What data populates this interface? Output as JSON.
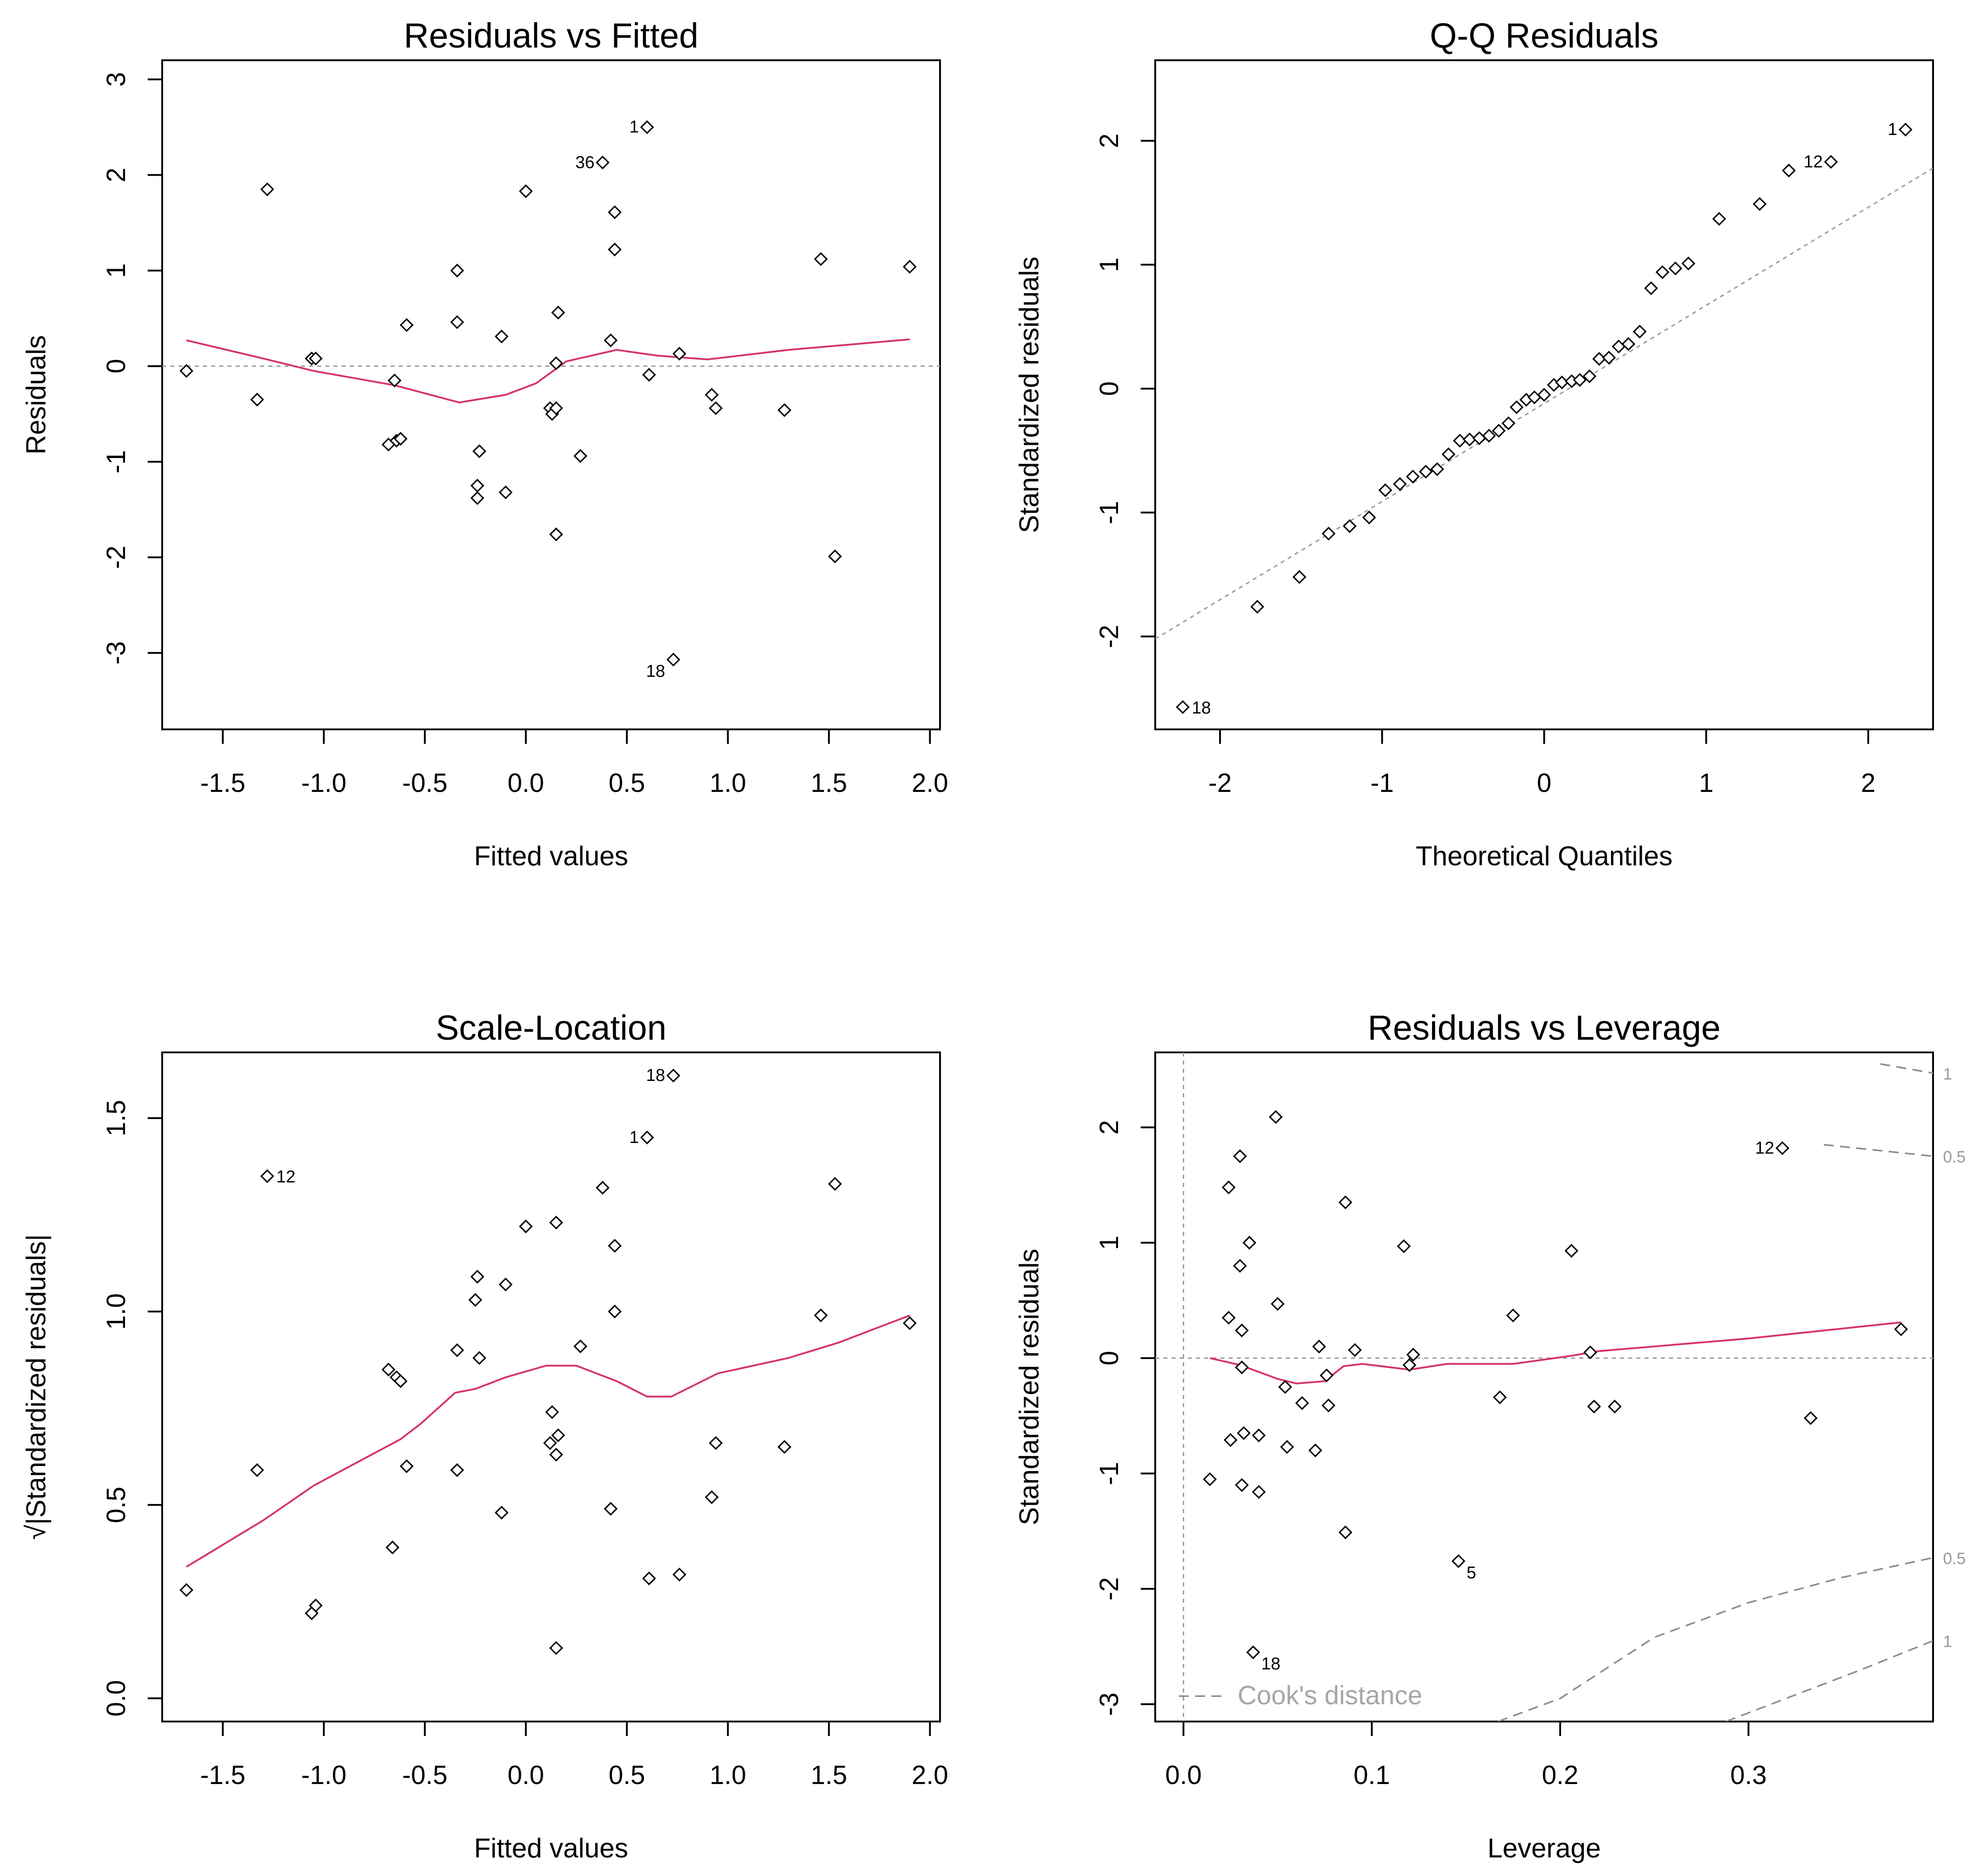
{
  "colors": {
    "smooth": "#d6336c",
    "reference": "#9a9a9a",
    "cooks": "#8c8c8c",
    "points": "#000000"
  },
  "chart_data": [
    {
      "type": "scatter",
      "title": "Residuals vs Fitted",
      "xlabel": "Fitted values",
      "ylabel": "Residuals",
      "xlim": [
        -1.8,
        2.05
      ],
      "ylim": [
        -3.8,
        3.2
      ],
      "xticks": [
        -1.5,
        -1.0,
        -0.5,
        0.0,
        0.5,
        1.0,
        1.5,
        2.0
      ],
      "xtick_labels": [
        "-1.5",
        "-1.0",
        "-0.5",
        "0.0",
        "0.5",
        "1.0",
        "1.5",
        "2.0"
      ],
      "yticks": [
        -3,
        -2,
        -1,
        0,
        1,
        2,
        3
      ],
      "ytick_labels": [
        "-3",
        "-2",
        "-1",
        "0",
        "1",
        "2",
        "3"
      ],
      "reference_line": {
        "y": 0
      },
      "points": [
        [
          -1.68,
          -0.05
        ],
        [
          -1.33,
          -0.35
        ],
        [
          -1.28,
          1.85
        ],
        [
          -1.06,
          0.08
        ],
        [
          -1.04,
          0.08
        ],
        [
          -0.68,
          -0.82
        ],
        [
          -0.65,
          -0.15
        ],
        [
          -0.64,
          -0.78
        ],
        [
          -0.62,
          -0.76
        ],
        [
          -0.59,
          0.43
        ],
        [
          -0.34,
          1.0
        ],
        [
          -0.34,
          0.46
        ],
        [
          -0.24,
          -1.25
        ],
        [
          -0.24,
          -1.38
        ],
        [
          -0.23,
          -0.89
        ],
        [
          -0.12,
          0.31
        ],
        [
          -0.1,
          -1.32
        ],
        [
          0.0,
          1.83
        ],
        [
          0.12,
          -0.44
        ],
        [
          0.13,
          -0.5
        ],
        [
          0.15,
          -0.44
        ],
        [
          0.15,
          0.03
        ],
        [
          0.16,
          0.56
        ],
        [
          0.15,
          -1.76
        ],
        [
          0.27,
          -0.94
        ],
        [
          0.38,
          2.13
        ],
        [
          0.42,
          0.27
        ],
        [
          0.44,
          1.61
        ],
        [
          0.44,
          1.22
        ],
        [
          0.6,
          2.5
        ],
        [
          0.61,
          -0.09
        ],
        [
          0.73,
          -3.07
        ],
        [
          0.76,
          0.13
        ],
        [
          0.92,
          -0.3
        ],
        [
          0.94,
          -0.44
        ],
        [
          1.28,
          -0.46
        ],
        [
          1.46,
          1.12
        ],
        [
          1.53,
          -1.99
        ],
        [
          1.9,
          1.04
        ]
      ],
      "point_labels": [
        {
          "text": "1",
          "x": 0.6,
          "y": 2.5
        },
        {
          "text": "36",
          "x": 0.38,
          "y": 2.13
        },
        {
          "text": "18",
          "x": 0.73,
          "y": -3.07
        }
      ],
      "smooth": [
        [
          -1.68,
          0.27
        ],
        [
          -1.3,
          0.08
        ],
        [
          -1.05,
          -0.05
        ],
        [
          -0.65,
          -0.2
        ],
        [
          -0.33,
          -0.38
        ],
        [
          -0.1,
          -0.3
        ],
        [
          0.05,
          -0.18
        ],
        [
          0.2,
          0.05
        ],
        [
          0.45,
          0.17
        ],
        [
          0.65,
          0.11
        ],
        [
          0.9,
          0.07
        ],
        [
          1.3,
          0.17
        ],
        [
          1.9,
          0.28
        ]
      ]
    },
    {
      "type": "scatter",
      "title": "Q-Q Residuals",
      "xlabel": "Theoretical Quantiles",
      "ylabel": "Standardized residuals",
      "xlim": [
        -2.4,
        2.4
      ],
      "ylim": [
        -2.75,
        2.65
      ],
      "xticks": [
        -2,
        -1,
        0,
        1,
        2
      ],
      "xtick_labels": [
        "-2",
        "-1",
        "0",
        "1",
        "2"
      ],
      "yticks": [
        -2,
        -1,
        0,
        1,
        2
      ],
      "ytick_labels": [
        "-2",
        "-1",
        "0",
        "1",
        "2"
      ],
      "reference_line": {
        "x1": -2.4,
        "y1": -2.02,
        "x2": 2.4,
        "y2": 1.78
      },
      "points": [
        [
          -2.23,
          -2.57
        ],
        [
          -1.77,
          -1.76
        ],
        [
          -1.51,
          -1.52
        ],
        [
          -1.33,
          -1.17
        ],
        [
          -1.2,
          -1.11
        ],
        [
          -1.08,
          -1.04
        ],
        [
          -0.98,
          -0.82
        ],
        [
          -0.89,
          -0.77
        ],
        [
          -0.81,
          -0.71
        ],
        [
          -0.73,
          -0.67
        ],
        [
          -0.66,
          -0.65
        ],
        [
          -0.59,
          -0.53
        ],
        [
          -0.52,
          -0.42
        ],
        [
          -0.46,
          -0.41
        ],
        [
          -0.4,
          -0.4
        ],
        [
          -0.34,
          -0.38
        ],
        [
          -0.28,
          -0.34
        ],
        [
          -0.22,
          -0.28
        ],
        [
          -0.17,
          -0.15
        ],
        [
          -0.11,
          -0.09
        ],
        [
          -0.06,
          -0.07
        ],
        [
          0.0,
          -0.05
        ],
        [
          0.06,
          0.03
        ],
        [
          0.11,
          0.05
        ],
        [
          0.17,
          0.06
        ],
        [
          0.22,
          0.07
        ],
        [
          0.28,
          0.1
        ],
        [
          0.34,
          0.24
        ],
        [
          0.4,
          0.25
        ],
        [
          0.46,
          0.34
        ],
        [
          0.52,
          0.36
        ],
        [
          0.59,
          0.46
        ],
        [
          0.66,
          0.81
        ],
        [
          0.73,
          0.94
        ],
        [
          0.81,
          0.97
        ],
        [
          0.89,
          1.01
        ],
        [
          1.08,
          1.37
        ],
        [
          1.33,
          1.49
        ],
        [
          1.51,
          1.76
        ],
        [
          1.77,
          1.83
        ],
        [
          2.23,
          2.09
        ]
      ],
      "point_labels": [
        {
          "text": "1",
          "x": 2.23,
          "y": 2.09
        },
        {
          "text": "12",
          "x": 1.77,
          "y": 1.83
        },
        {
          "text": "18",
          "x": -2.23,
          "y": -2.57
        }
      ]
    },
    {
      "type": "scatter",
      "title": "Scale-Location",
      "xlabel": "Fitted values",
      "ylabel": "√|Standardized residuals|",
      "xlim": [
        -1.8,
        2.05
      ],
      "ylim": [
        -0.06,
        1.67
      ],
      "xticks": [
        -1.5,
        -1.0,
        -0.5,
        0.0,
        0.5,
        1.0,
        1.5,
        2.0
      ],
      "xtick_labels": [
        "-1.5",
        "-1.0",
        "-0.5",
        "0.0",
        "0.5",
        "1.0",
        "1.5",
        "2.0"
      ],
      "yticks": [
        0.0,
        0.5,
        1.0,
        1.5
      ],
      "ytick_labels": [
        "0.0",
        "0.5",
        "1.0",
        "1.5"
      ],
      "points": [
        [
          -1.68,
          0.28
        ],
        [
          -1.33,
          0.59
        ],
        [
          -1.28,
          1.35
        ],
        [
          -1.06,
          0.22
        ],
        [
          -1.04,
          0.24
        ],
        [
          -0.68,
          0.85
        ],
        [
          -0.66,
          0.39
        ],
        [
          -0.64,
          0.83
        ],
        [
          -0.62,
          0.82
        ],
        [
          -0.59,
          0.6
        ],
        [
          -0.34,
          0.59
        ],
        [
          -0.34,
          0.9
        ],
        [
          -0.24,
          1.09
        ],
        [
          -0.25,
          1.03
        ],
        [
          -0.23,
          0.88
        ],
        [
          -0.12,
          0.48
        ],
        [
          -0.1,
          1.07
        ],
        [
          0.0,
          1.22
        ],
        [
          0.12,
          0.66
        ],
        [
          0.13,
          0.74
        ],
        [
          0.15,
          1.23
        ],
        [
          0.15,
          0.63
        ],
        [
          0.15,
          0.13
        ],
        [
          0.16,
          0.68
        ],
        [
          0.27,
          0.91
        ],
        [
          0.38,
          1.32
        ],
        [
          0.42,
          0.49
        ],
        [
          0.44,
          1.17
        ],
        [
          0.44,
          1.0
        ],
        [
          0.6,
          1.45
        ],
        [
          0.61,
          0.31
        ],
        [
          0.73,
          1.61
        ],
        [
          0.76,
          0.32
        ],
        [
          0.92,
          0.52
        ],
        [
          0.94,
          0.66
        ],
        [
          1.28,
          0.65
        ],
        [
          1.46,
          0.99
        ],
        [
          1.53,
          1.33
        ],
        [
          1.9,
          0.97
        ]
      ],
      "point_labels": [
        {
          "text": "12",
          "x": -1.28,
          "y": 1.35
        },
        {
          "text": "18",
          "x": 0.73,
          "y": 1.61
        },
        {
          "text": "1",
          "x": 0.6,
          "y": 1.45
        }
      ],
      "smooth": [
        [
          -1.68,
          0.34
        ],
        [
          -1.3,
          0.46
        ],
        [
          -1.05,
          0.55
        ],
        [
          -0.62,
          0.67
        ],
        [
          -0.52,
          0.71
        ],
        [
          -0.35,
          0.79
        ],
        [
          -0.25,
          0.8
        ],
        [
          -0.1,
          0.83
        ],
        [
          0.1,
          0.86
        ],
        [
          0.25,
          0.86
        ],
        [
          0.45,
          0.82
        ],
        [
          0.6,
          0.78
        ],
        [
          0.72,
          0.78
        ],
        [
          0.95,
          0.84
        ],
        [
          1.3,
          0.88
        ],
        [
          1.55,
          0.92
        ],
        [
          1.9,
          0.99
        ]
      ]
    },
    {
      "type": "scatter",
      "title": "Residuals vs Leverage",
      "xlabel": "Leverage",
      "ylabel": "Standardized residuals",
      "xlim": [
        -0.015,
        0.398
      ],
      "ylim": [
        -3.15,
        2.65
      ],
      "xticks": [
        0.0,
        0.1,
        0.2,
        0.3
      ],
      "xtick_labels": [
        "0.0",
        "0.1",
        "0.2",
        "0.3"
      ],
      "yticks": [
        -3,
        -2,
        -1,
        0,
        1,
        2
      ],
      "ytick_labels": [
        "-3",
        "-2",
        "-1",
        "0",
        "1",
        "2"
      ],
      "reference_lines": [
        {
          "x": 0
        },
        {
          "y": 0
        }
      ],
      "points": [
        [
          0.014,
          -1.05
        ],
        [
          0.024,
          1.48
        ],
        [
          0.024,
          0.35
        ],
        [
          0.025,
          -0.71
        ],
        [
          0.03,
          1.75
        ],
        [
          0.03,
          0.8
        ],
        [
          0.031,
          -1.1
        ],
        [
          0.031,
          0.24
        ],
        [
          0.031,
          -0.08
        ],
        [
          0.032,
          -0.65
        ],
        [
          0.035,
          1.0
        ],
        [
          0.037,
          -2.55
        ],
        [
          0.04,
          -1.16
        ],
        [
          0.04,
          -0.67
        ],
        [
          0.049,
          2.09
        ],
        [
          0.05,
          0.47
        ],
        [
          0.054,
          -0.25
        ],
        [
          0.055,
          -0.77
        ],
        [
          0.063,
          -0.39
        ],
        [
          0.07,
          -0.8
        ],
        [
          0.072,
          0.1
        ],
        [
          0.076,
          -0.15
        ],
        [
          0.077,
          -0.41
        ],
        [
          0.086,
          1.35
        ],
        [
          0.086,
          -1.51
        ],
        [
          0.091,
          0.07
        ],
        [
          0.117,
          0.97
        ],
        [
          0.12,
          -0.06
        ],
        [
          0.122,
          0.03
        ],
        [
          0.146,
          -1.76
        ],
        [
          0.168,
          -0.34
        ],
        [
          0.175,
          0.37
        ],
        [
          0.206,
          0.93
        ],
        [
          0.216,
          0.05
        ],
        [
          0.218,
          -0.42
        ],
        [
          0.229,
          -0.42
        ],
        [
          0.318,
          1.82
        ],
        [
          0.333,
          -0.52
        ],
        [
          0.381,
          0.25
        ]
      ],
      "point_labels": [
        {
          "text": "12",
          "x": 0.318,
          "y": 1.82
        },
        {
          "text": "5",
          "x": 0.146,
          "y": -1.76
        },
        {
          "text": "18",
          "x": 0.037,
          "y": -2.55
        }
      ],
      "smooth": [
        [
          0.014,
          0.0
        ],
        [
          0.03,
          -0.06
        ],
        [
          0.05,
          -0.18
        ],
        [
          0.06,
          -0.22
        ],
        [
          0.075,
          -0.2
        ],
        [
          0.085,
          -0.07
        ],
        [
          0.095,
          -0.05
        ],
        [
          0.12,
          -0.1
        ],
        [
          0.14,
          -0.05
        ],
        [
          0.175,
          -0.05
        ],
        [
          0.206,
          0.02
        ],
        [
          0.22,
          0.06
        ],
        [
          0.3,
          0.17
        ],
        [
          0.381,
          0.31
        ]
      ],
      "cooks_curves": [
        {
          "label": "0.5",
          "points": [
            [
              0.34,
              1.85
            ],
            [
              0.398,
              1.75
            ]
          ]
        },
        {
          "label": "1",
          "points": [
            [
              0.37,
              2.55
            ],
            [
              0.398,
              2.47
            ]
          ]
        },
        {
          "label": "0.5",
          "points": [
            [
              0.167,
              -3.15
            ],
            [
              0.2,
              -2.95
            ],
            [
              0.25,
              -2.42
            ],
            [
              0.3,
              -2.12
            ],
            [
              0.35,
              -1.9
            ],
            [
              0.398,
              -1.73
            ]
          ]
        },
        {
          "label": "1",
          "points": [
            [
              0.288,
              -3.15
            ],
            [
              0.32,
              -2.95
            ],
            [
              0.36,
              -2.7
            ],
            [
              0.398,
              -2.45
            ]
          ]
        }
      ],
      "legend": {
        "text": "Cook's distance",
        "position": "bottom-left"
      }
    }
  ]
}
